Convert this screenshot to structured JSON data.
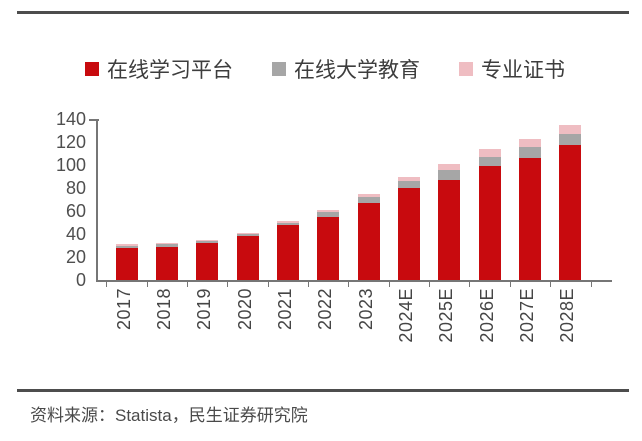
{
  "rules": {
    "color": "#4d4d4d"
  },
  "legend": [
    {
      "label": "在线学习平台",
      "color": "#c80a0e"
    },
    {
      "label": "在线大学教育",
      "color": "#a6a6a6"
    },
    {
      "label": "专业证书",
      "color": "#efbdc2"
    }
  ],
  "chart_data": {
    "type": "bar",
    "stacked": true,
    "title": "",
    "xlabel": "",
    "ylabel": "",
    "categories": [
      "2017",
      "2018",
      "2019",
      "2020",
      "2021",
      "2022",
      "2023",
      "2024E",
      "2025E",
      "2026E",
      "2027E",
      "2028E"
    ],
    "series": [
      {
        "name": "在线学习平台",
        "color": "#c80a0e",
        "values": [
          28,
          29,
          32,
          38,
          48,
          55,
          67,
          80,
          87,
          99,
          106,
          117
        ]
      },
      {
        "name": "在线大学教育",
        "color": "#a6a6a6",
        "values": [
          2,
          2,
          2,
          2,
          2,
          4,
          5,
          6,
          9,
          8,
          10,
          10
        ]
      },
      {
        "name": "专业证书",
        "color": "#efbdc2",
        "values": [
          1,
          1,
          1,
          1,
          1,
          2,
          3,
          4,
          5,
          7,
          7,
          8
        ]
      }
    ],
    "totals": [
      31,
      32,
      35,
      41,
      51,
      61,
      75,
      90,
      101,
      114,
      123,
      135
    ],
    "ylim": [
      0,
      140
    ],
    "yticks": [
      0,
      20,
      40,
      60,
      80,
      100,
      120,
      140
    ],
    "grid": false,
    "legend_position": "top"
  },
  "footer": {
    "text": "资料来源：Statista，民生证券研究院"
  }
}
